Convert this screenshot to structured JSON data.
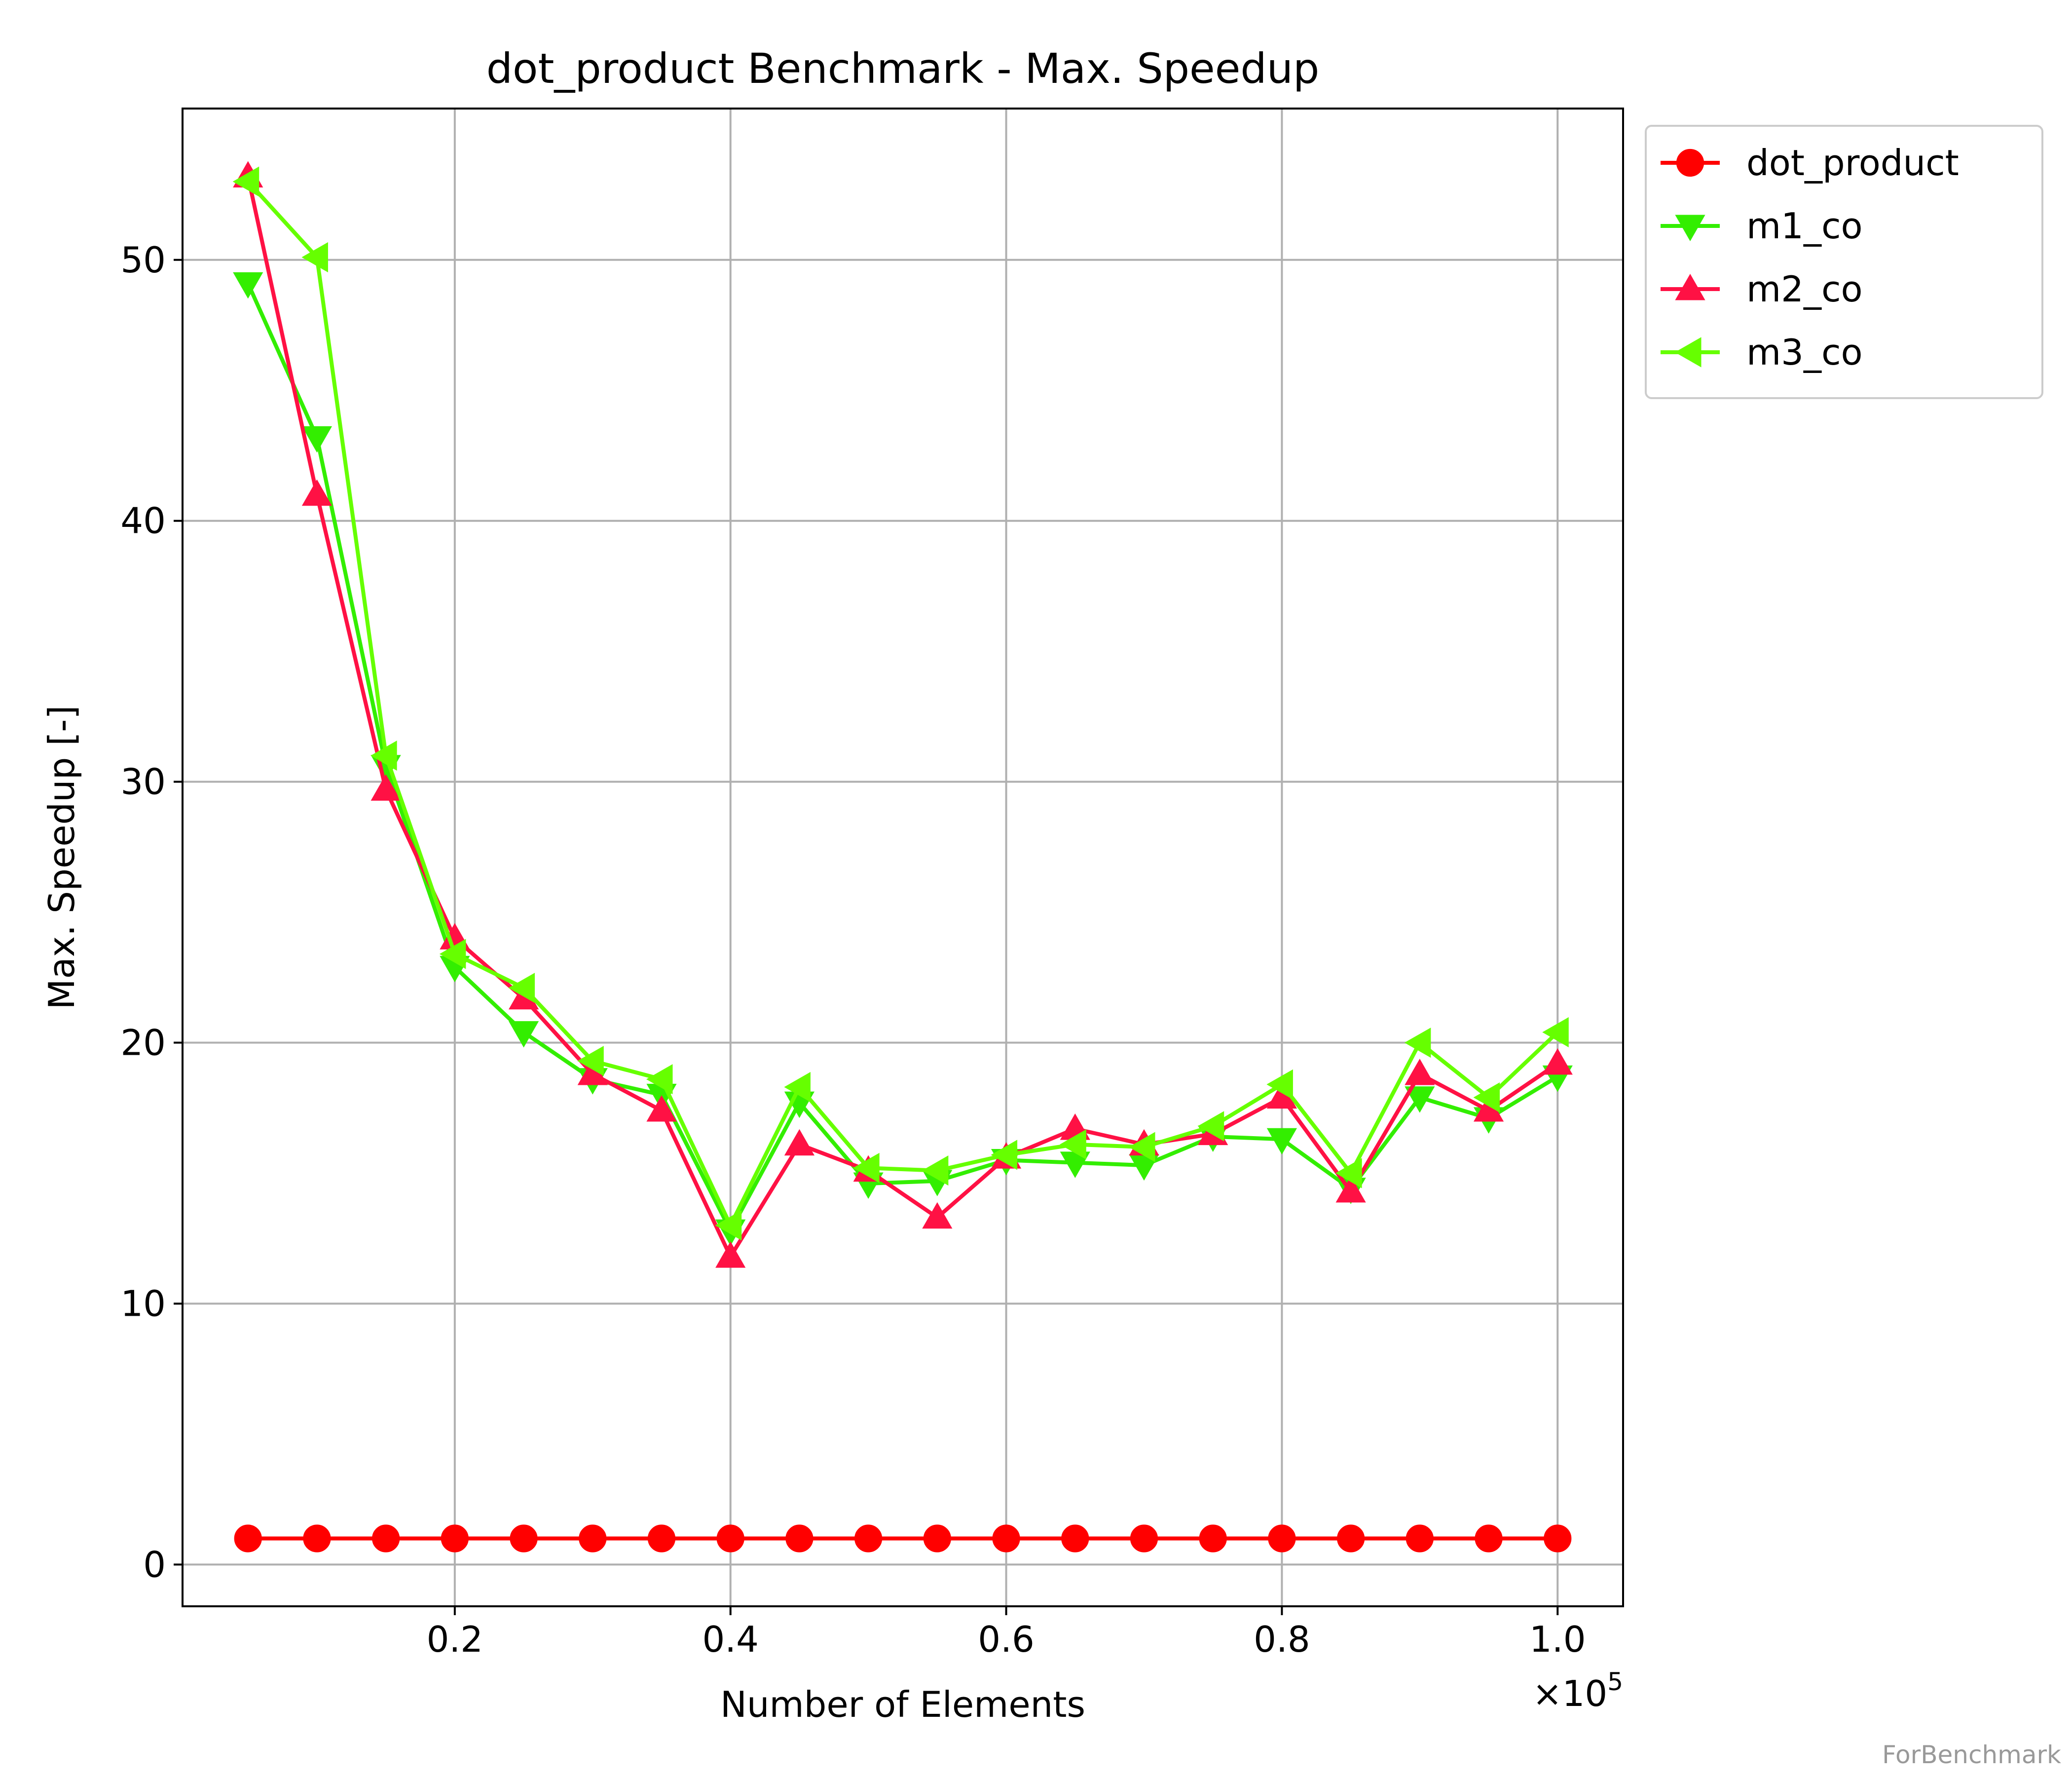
{
  "chart_data": {
    "type": "line",
    "title": "dot_product Benchmark - Max. Speedup",
    "xlabel": "Number of Elements",
    "ylabel": "Max. Speedup [-]",
    "x_scale_label": "×10",
    "x_scale_exponent": "5",
    "x": [
      0.05,
      0.1,
      0.15,
      0.2,
      0.25,
      0.3,
      0.35,
      0.4,
      0.45,
      0.5,
      0.55,
      0.6,
      0.65,
      0.7,
      0.75,
      0.8,
      0.85,
      0.9,
      0.95,
      1.0
    ],
    "xlim": [
      0.0025,
      1.0475
    ],
    "ylim": [
      -1.6,
      55.8
    ],
    "xticks": [
      0.2,
      0.4,
      0.6,
      0.8,
      1.0
    ],
    "xtick_labels": [
      "0.2",
      "0.4",
      "0.6",
      "0.8",
      "1.0"
    ],
    "yticks": [
      0,
      10,
      20,
      30,
      40,
      50
    ],
    "ytick_labels": [
      "0",
      "10",
      "20",
      "30",
      "40",
      "50"
    ],
    "grid": true,
    "legend_position": "outside-top-right",
    "series": [
      {
        "name": "dot_product",
        "color": "#ff0000",
        "marker": "circle",
        "values": [
          1,
          1,
          1,
          1,
          1,
          1,
          1,
          1,
          1,
          1,
          1,
          1,
          1,
          1,
          1,
          1,
          1,
          1,
          1,
          1
        ]
      },
      {
        "name": "m1_co",
        "color": "#33ee00",
        "marker": "triangle-down",
        "values": [
          49.1,
          43.2,
          30.6,
          22.9,
          20.4,
          18.6,
          18.0,
          12.8,
          17.7,
          14.6,
          14.7,
          15.5,
          15.4,
          15.3,
          16.4,
          16.3,
          14.4,
          17.9,
          17.1,
          18.7
        ]
      },
      {
        "name": "m2_co",
        "color": "#ff1144",
        "marker": "triangle-up",
        "values": [
          53.2,
          41.0,
          29.7,
          24.0,
          21.7,
          18.8,
          17.4,
          11.8,
          16.1,
          15.1,
          13.3,
          15.6,
          16.7,
          16.1,
          16.5,
          17.9,
          14.3,
          18.8,
          17.4,
          19.2
        ]
      },
      {
        "name": "m3_co",
        "color": "#66ff00",
        "marker": "triangle-left",
        "values": [
          53.0,
          50.1,
          31.0,
          23.4,
          22.1,
          19.3,
          18.6,
          13.0,
          18.3,
          15.2,
          15.1,
          15.7,
          16.1,
          16.0,
          16.8,
          18.4,
          15.0,
          20.0,
          17.9,
          20.4
        ]
      }
    ]
  },
  "watermark": "ForBenchmark"
}
